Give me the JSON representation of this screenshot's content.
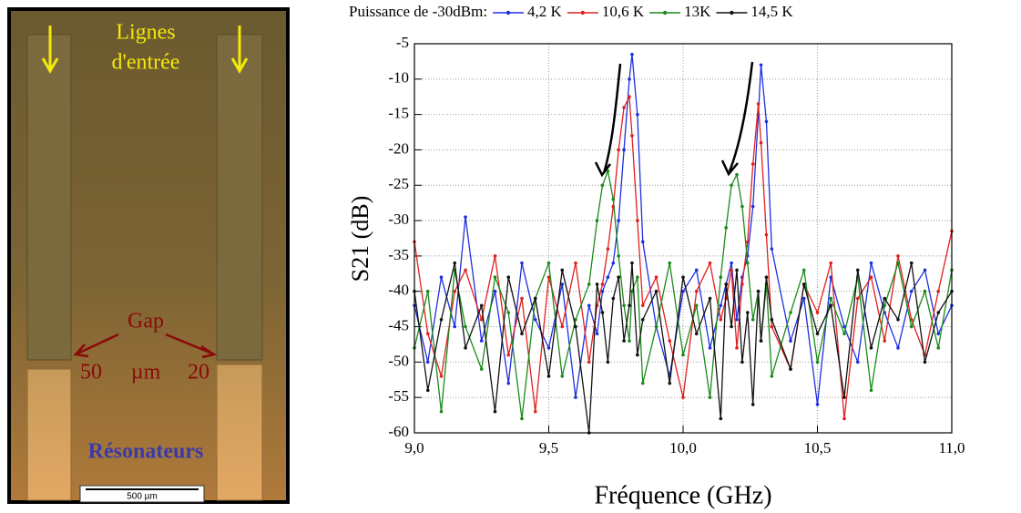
{
  "micrograph": {
    "label_top_1": "Lignes",
    "label_top_2": "d'entrée",
    "gap": "Gap",
    "gap_left": "50",
    "gap_unit": "µm",
    "gap_right": "20",
    "label_bottom": "Résonateurs",
    "scale_bar": "500 µm"
  },
  "chart_data": {
    "type": "line",
    "legend_title": "Puissance de -30dBm:",
    "xlabel": "Fréquence (GHz)",
    "ylabel": "S21 (dB)",
    "xlim": [
      9.0,
      11.0
    ],
    "ylim": [
      -60,
      -5
    ],
    "xticks": [
      {
        "value": 9.0,
        "label": "9,0"
      },
      {
        "value": 9.5,
        "label": "9,5"
      },
      {
        "value": 10.0,
        "label": "10,0"
      },
      {
        "value": 10.5,
        "label": "10,5"
      },
      {
        "value": 11.0,
        "label": "11,0"
      }
    ],
    "yticks": [
      -60,
      -55,
      -50,
      -45,
      -40,
      -35,
      -30,
      -25,
      -20,
      -15,
      -10,
      -5
    ],
    "grid": true,
    "x": [
      9.0,
      9.05,
      9.1,
      9.15,
      9.19,
      9.25,
      9.3,
      9.35,
      9.4,
      9.45,
      9.5,
      9.55,
      9.6,
      9.65,
      9.68,
      9.7,
      9.72,
      9.74,
      9.76,
      9.78,
      9.8,
      9.81,
      9.83,
      9.85,
      9.9,
      9.95,
      10.0,
      10.05,
      10.1,
      10.14,
      10.16,
      10.18,
      10.2,
      10.22,
      10.24,
      10.26,
      10.28,
      10.29,
      10.31,
      10.33,
      10.4,
      10.45,
      10.5,
      10.55,
      10.6,
      10.65,
      10.7,
      10.75,
      10.8,
      10.85,
      10.9,
      10.95,
      11.0
    ],
    "series": [
      {
        "name": "4,2 K",
        "color": "#1f2fe0",
        "values": [
          -42,
          -50,
          -38,
          -45,
          -29.5,
          -47,
          -40,
          -53,
          -36,
          -44,
          -48,
          -39,
          -55,
          -42,
          -46,
          -40,
          -38,
          -36,
          -30,
          -20,
          -10,
          -6.5,
          -15,
          -33,
          -45,
          -52,
          -40,
          -37,
          -48,
          -42,
          -39,
          -36,
          -44,
          -38,
          -35,
          -28,
          -15,
          -8,
          -16,
          -34,
          -47,
          -41,
          -56,
          -38,
          -45,
          -50,
          -36,
          -43,
          -48,
          -40,
          -37,
          -46,
          -42
        ]
      },
      {
        "name": "10,6 K",
        "color": "#e0201e",
        "values": [
          -33,
          -46,
          -52,
          -40,
          -37,
          -44,
          -35,
          -49,
          -41,
          -57,
          -38,
          -45,
          -36,
          -50,
          -42,
          -39,
          -34,
          -28,
          -20,
          -14,
          -12.5,
          -18,
          -30,
          -42,
          -38,
          -47,
          -55,
          -40,
          -36,
          -44,
          -41,
          -37,
          -48,
          -39,
          -33,
          -22,
          -13.5,
          -19,
          -32,
          -45,
          -51,
          -39,
          -43,
          -36,
          -58,
          -41,
          -38,
          -47,
          -35,
          -44,
          -49,
          -40,
          -31.5
        ]
      },
      {
        "name": "13K",
        "color": "#1a8a1a",
        "values": [
          -48,
          -40,
          -57,
          -37,
          -45,
          -51,
          -38,
          -43,
          -58,
          -41,
          -36,
          -52,
          -44,
          -39,
          -30,
          -25,
          -23,
          -27,
          -35,
          -42,
          -47,
          -40,
          -38,
          -53,
          -45,
          -36,
          -49,
          -42,
          -55,
          -38,
          -31,
          -25,
          -23.5,
          -28,
          -36,
          -44,
          -40,
          -47,
          -39,
          -52,
          -43,
          -37,
          -50,
          -41,
          -46,
          -38,
          -54,
          -42,
          -36,
          -45,
          -40,
          -48,
          -37
        ]
      },
      {
        "name": "14,5 K",
        "color": "#111111",
        "values": [
          -40,
          -54,
          -44,
          -36,
          -48,
          -42,
          -57,
          -38,
          -46,
          -41,
          -52,
          -37,
          -45,
          -60,
          -39,
          -43,
          -50,
          -41,
          -38,
          -47,
          -42,
          -36,
          -49,
          -44,
          -40,
          -53,
          -38,
          -46,
          -41,
          -58,
          -39,
          -45,
          -37,
          -50,
          -43,
          -56,
          -40,
          -47,
          -38,
          -44,
          -51,
          -39,
          -46,
          -42,
          -55,
          -37,
          -48,
          -41,
          -44,
          -36,
          -50,
          -43,
          -40
        ]
      }
    ]
  }
}
